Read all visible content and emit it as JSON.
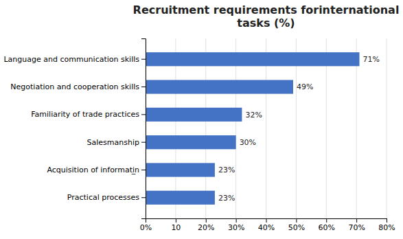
{
  "chart_data": {
    "type": "bar",
    "orientation": "horizontal",
    "title": "Recruitment requirements for​international\ntasks (%)",
    "categories": [
      "Practical processes",
      "Acquisition of informati̲n",
      "Salesmanship",
      "Familiarity of trade practices",
      "Negotiation and cooperation skills",
      "Language and communication skills"
    ],
    "values": [
      23,
      23,
      30,
      32,
      49,
      71
    ],
    "value_labels": [
      "23%",
      "23%",
      "30%",
      "32%",
      "49%",
      "71%"
    ],
    "data_labels": true,
    "color": "#4472C4",
    "xlim": [
      0,
      80
    ],
    "xticks": [
      {
        "value": 0,
        "label": "0%"
      },
      10,
      {
        "value": 20,
        "label": "20%"
      },
      {
        "value": 30,
        "label": "30%"
      },
      {
        "value": 40,
        "label": "40%"
      },
      {
        "value": 50,
        "label": "50%"
      },
      {
        "value": 60,
        "label": "60%"
      },
      {
        "value": 70,
        "label": "70%"
      },
      {
        "value": 80,
        "label": "80%"
      }
    ],
    "grid": true
  }
}
